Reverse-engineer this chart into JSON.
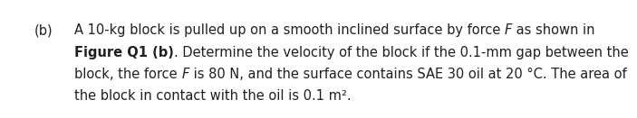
{
  "background_color": "#ffffff",
  "text_color": "#231f20",
  "fontsize": 10.5,
  "label": "(b)",
  "lines": [
    {
      "parts": [
        {
          "text": "A 10-kg block is pulled up on a smooth inclined surface by force ",
          "bold": false,
          "italic": false
        },
        {
          "text": "F",
          "bold": false,
          "italic": true
        },
        {
          "text": " as shown in",
          "bold": false,
          "italic": false
        }
      ]
    },
    {
      "parts": [
        {
          "text": "Figure Q1 (b)",
          "bold": true,
          "italic": false
        },
        {
          "text": ". Determine the velocity of the block if the 0.1-mm gap between the",
          "bold": false,
          "italic": false
        }
      ]
    },
    {
      "parts": [
        {
          "text": "block, the force ",
          "bold": false,
          "italic": false
        },
        {
          "text": "F",
          "bold": false,
          "italic": true
        },
        {
          "text": " is 80 N, and the surface contains SAE 30 oil at 20 °C. The area of",
          "bold": false,
          "italic": false
        }
      ]
    },
    {
      "parts": [
        {
          "text": "the block in contact with the oil is 0.1 m².",
          "bold": false,
          "italic": false
        }
      ]
    }
  ]
}
